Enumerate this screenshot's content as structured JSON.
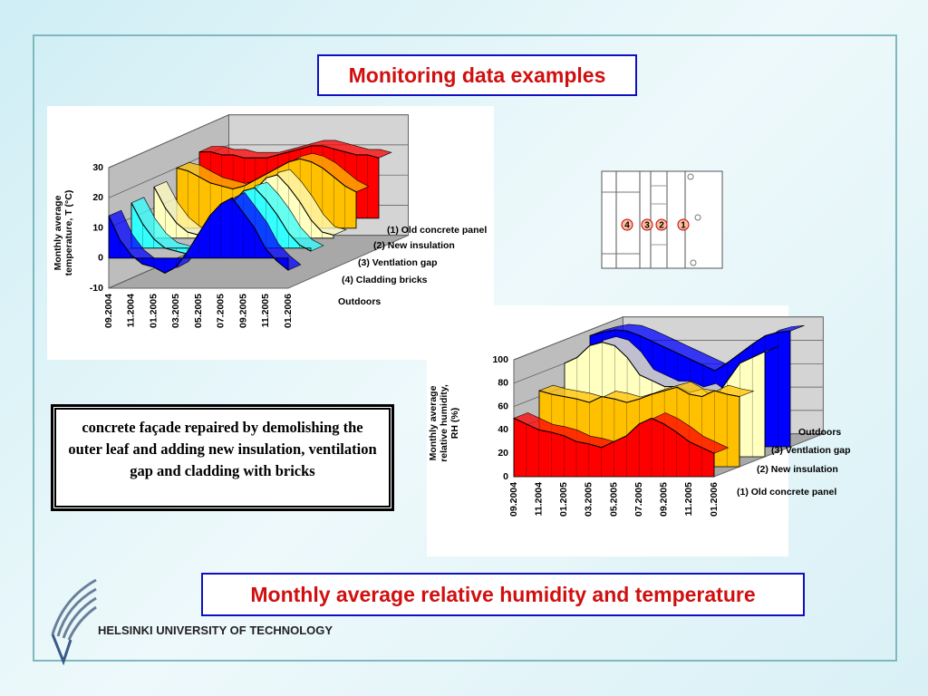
{
  "slide": {
    "title": "Monitoring data examples",
    "note": "concrete façade repaired by demolishing the outer leaf and adding new insulation, ventilation gap and cladding with bricks",
    "caption": "Monthly average relative humidity and temperature",
    "footer": "HELSINKI UNIVERSITY OF TECHNOLOGY",
    "diagram": {
      "labels": [
        "4",
        "3",
        "2",
        "1"
      ]
    }
  },
  "chart_data": [
    {
      "type": "area3d",
      "y_label": [
        "Monthly average",
        "temperature, T (°C)"
      ],
      "categories": [
        "09.2004",
        null,
        "11.2004",
        null,
        "01.2005",
        null,
        "03.2005",
        null,
        "05.2005",
        null,
        "07.2005",
        null,
        "09.2005",
        null,
        "11.2005",
        null,
        "01.2006"
      ],
      "ylim": [
        -10,
        30
      ],
      "yticks": [
        -10,
        0,
        10,
        20,
        30
      ],
      "grid": true,
      "series": [
        {
          "name": "(1) Old concrete panel",
          "color": "#ff0000",
          "values": [
            22,
            22,
            21,
            21,
            20,
            20,
            20,
            21,
            22,
            23,
            24,
            24,
            23,
            22,
            21,
            21,
            20
          ]
        },
        {
          "name": "(2) New insulation",
          "color": "#ffc000",
          "values": [
            20,
            19,
            17,
            15,
            14,
            13,
            14,
            16,
            18,
            20,
            22,
            23,
            22,
            20,
            17,
            14,
            12
          ]
        },
        {
          "name": "(3) Ventlation gap",
          "color": "#ffffc0",
          "values": [
            17,
            10,
            5,
            2,
            1,
            0,
            2,
            6,
            11,
            16,
            20,
            21,
            17,
            12,
            6,
            2,
            1
          ]
        },
        {
          "name": "(4) Cladding bricks",
          "color": "#33ffff",
          "values": [
            15,
            8,
            3,
            0,
            -1,
            -2,
            0,
            4,
            10,
            15,
            19,
            20,
            16,
            11,
            5,
            1,
            -1
          ]
        },
        {
          "name": "Outdoors",
          "color": "#0000ff",
          "values": [
            14,
            6,
            1,
            -2,
            -3,
            -5,
            -3,
            2,
            8,
            14,
            18,
            20,
            15,
            10,
            3,
            -1,
            -4
          ]
        }
      ]
    },
    {
      "type": "area3d",
      "y_label": [
        "Monthly average",
        "relative humidity,",
        "RH (%)"
      ],
      "categories": [
        "09.2004",
        null,
        "11.2004",
        null,
        "01.2005",
        null,
        "03.2005",
        null,
        "05.2005",
        null,
        "07.2005",
        null,
        "09.2005",
        null,
        "11.2005",
        null,
        "01.2006"
      ],
      "ylim": [
        0,
        100
      ],
      "yticks": [
        0,
        20,
        40,
        60,
        80,
        100
      ],
      "grid": true,
      "series": [
        {
          "name": "Outdoors",
          "color": "#0000ff",
          "values": [
            95,
            98,
            100,
            99,
            95,
            90,
            85,
            80,
            75,
            70,
            65,
            72,
            80,
            88,
            95,
            98,
            99
          ]
        },
        {
          "name": "(3) Ventlation gap",
          "color": "#ffffc0",
          "values": [
            80,
            85,
            95,
            98,
            95,
            85,
            70,
            65,
            60,
            60,
            55,
            58,
            50,
            65,
            80,
            85,
            90
          ]
        },
        {
          "name": "(2) New insulation",
          "color": "#ffc000",
          "values": [
            65,
            62,
            60,
            58,
            55,
            60,
            58,
            55,
            58,
            62,
            65,
            68,
            62,
            60,
            65,
            62,
            60
          ]
        },
        {
          "name": "(1) Old concrete panel",
          "color": "#ff0000",
          "values": [
            50,
            45,
            40,
            38,
            35,
            30,
            28,
            25,
            30,
            35,
            45,
            50,
            45,
            38,
            30,
            25,
            20
          ]
        }
      ]
    }
  ]
}
